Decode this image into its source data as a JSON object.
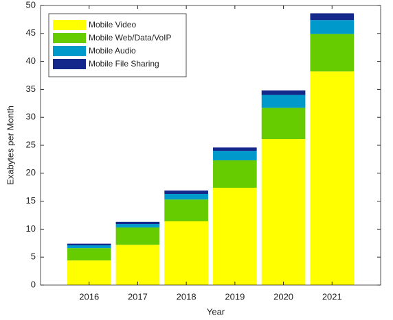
{
  "chart_data": {
    "type": "stacked_bar",
    "x": [
      2016,
      2017,
      2018,
      2019,
      2020,
      2021
    ],
    "xlabel": "Year",
    "ylabel": "Exabytes per Month",
    "series": [
      {
        "name": "Mobile Video",
        "color": "#ffff00",
        "values": [
          4.4,
          7.2,
          11.4,
          17.4,
          26.1,
          38.2
        ]
      },
      {
        "name": "Mobile Web/Data/VoIP",
        "color": "#66cc00",
        "values": [
          2.2,
          3.1,
          3.9,
          4.9,
          5.6,
          6.7
        ]
      },
      {
        "name": "Mobile Audio",
        "color": "#0099cc",
        "values": [
          0.5,
          0.6,
          1.0,
          1.7,
          2.3,
          2.5
        ]
      },
      {
        "name": "Mobile File Sharing",
        "color": "#14288c",
        "values": [
          0.3,
          0.4,
          0.6,
          0.6,
          0.8,
          1.2
        ]
      }
    ],
    "xlim": [
      2015,
      2022
    ],
    "xticks": [
      2016,
      2017,
      2018,
      2019,
      2020,
      2021
    ],
    "ylim": [
      0,
      50
    ],
    "yticks": [
      0,
      5,
      10,
      15,
      20,
      25,
      30,
      35,
      40,
      45,
      50
    ],
    "legend": "upper left"
  }
}
